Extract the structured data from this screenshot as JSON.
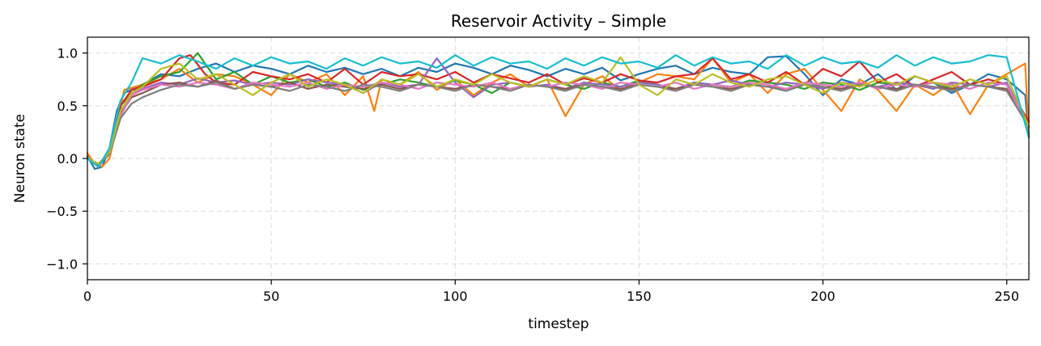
{
  "chart_data": {
    "type": "line",
    "title": "Reservoir Activity – Simple",
    "xlabel": "timestep",
    "ylabel": "Neuron state",
    "xlim": [
      0,
      256
    ],
    "ylim": [
      -1.15,
      1.15
    ],
    "xticks": [
      0,
      50,
      100,
      150,
      200,
      250
    ],
    "xtick_labels": [
      "0",
      "50",
      "100",
      "150",
      "200",
      "250"
    ],
    "yticks": [
      -1.0,
      -0.5,
      0.0,
      0.5,
      1.0
    ],
    "ytick_labels": [
      "−1.0",
      "−0.5",
      "0.0",
      "0.5",
      "1.0"
    ],
    "grid": true,
    "legend": false,
    "series": [
      {
        "color": "#1f77b4",
        "x": [
          0,
          2,
          4,
          6,
          8,
          10,
          15,
          20,
          25,
          30,
          35,
          40,
          45,
          50,
          55,
          60,
          65,
          70,
          75,
          80,
          85,
          90,
          95,
          100,
          105,
          110,
          115,
          120,
          125,
          130,
          135,
          140,
          145,
          150,
          155,
          160,
          165,
          170,
          175,
          180,
          185,
          190,
          195,
          200,
          205,
          210,
          215,
          220,
          225,
          230,
          235,
          240,
          245,
          250,
          255,
          256
        ],
        "y": [
          0.02,
          -0.1,
          -0.08,
          0.1,
          0.45,
          0.62,
          0.7,
          0.8,
          0.78,
          0.85,
          0.9,
          0.82,
          0.88,
          0.85,
          0.8,
          0.88,
          0.82,
          0.86,
          0.8,
          0.85,
          0.78,
          0.86,
          0.82,
          0.9,
          0.86,
          0.8,
          0.88,
          0.84,
          0.78,
          0.85,
          0.8,
          0.86,
          0.74,
          0.8,
          0.85,
          0.88,
          0.8,
          0.86,
          0.82,
          0.8,
          0.96,
          0.97,
          0.8,
          0.6,
          0.75,
          0.7,
          0.8,
          0.65,
          0.78,
          0.72,
          0.62,
          0.7,
          0.8,
          0.75,
          0.6,
          0.2
        ]
      },
      {
        "color": "#ff7f0e",
        "x": [
          0,
          2,
          4,
          6,
          8,
          10,
          15,
          20,
          25,
          30,
          35,
          40,
          45,
          50,
          55,
          60,
          65,
          70,
          75,
          78,
          80,
          85,
          90,
          95,
          100,
          105,
          110,
          115,
          120,
          125,
          130,
          135,
          140,
          145,
          150,
          155,
          160,
          165,
          170,
          175,
          180,
          185,
          190,
          195,
          200,
          205,
          210,
          215,
          220,
          225,
          230,
          235,
          240,
          245,
          250,
          255,
          256
        ],
        "y": [
          0.05,
          -0.05,
          -0.08,
          0.0,
          0.3,
          0.65,
          0.7,
          0.75,
          0.85,
          0.72,
          0.8,
          0.78,
          0.7,
          0.6,
          0.8,
          0.72,
          0.8,
          0.6,
          0.78,
          0.45,
          0.75,
          0.7,
          0.82,
          0.65,
          0.75,
          0.6,
          0.72,
          0.8,
          0.68,
          0.75,
          0.4,
          0.7,
          0.78,
          0.65,
          0.72,
          0.8,
          0.78,
          0.75,
          0.95,
          0.72,
          0.8,
          0.62,
          0.8,
          0.85,
          0.65,
          0.45,
          0.75,
          0.65,
          0.45,
          0.7,
          0.6,
          0.72,
          0.42,
          0.7,
          0.8,
          0.9,
          0.2
        ]
      },
      {
        "color": "#2ca02c",
        "x": [
          0,
          3,
          6,
          9,
          12,
          15,
          20,
          25,
          30,
          35,
          40,
          45,
          50,
          55,
          60,
          65,
          70,
          75,
          80,
          85,
          90,
          95,
          100,
          105,
          110,
          115,
          120,
          125,
          130,
          135,
          140,
          145,
          150,
          155,
          160,
          165,
          170,
          175,
          180,
          185,
          190,
          195,
          200,
          205,
          210,
          215,
          220,
          225,
          230,
          235,
          240,
          245,
          250,
          256
        ],
        "y": [
          0.0,
          -0.07,
          0.05,
          0.5,
          0.62,
          0.7,
          0.78,
          0.82,
          1.0,
          0.75,
          0.82,
          0.7,
          0.78,
          0.72,
          0.75,
          0.68,
          0.72,
          0.65,
          0.7,
          0.75,
          0.72,
          0.68,
          0.74,
          0.7,
          0.62,
          0.72,
          0.68,
          0.75,
          0.7,
          0.66,
          0.72,
          0.68,
          0.74,
          0.7,
          0.66,
          0.72,
          0.7,
          0.68,
          0.74,
          0.72,
          0.7,
          0.66,
          0.72,
          0.7,
          0.65,
          0.72,
          0.7,
          0.68,
          0.72,
          0.66,
          0.7,
          0.68,
          0.72,
          0.3
        ]
      },
      {
        "color": "#d62728",
        "x": [
          0,
          3,
          6,
          9,
          12,
          15,
          20,
          25,
          28,
          32,
          35,
          40,
          45,
          50,
          55,
          60,
          65,
          70,
          75,
          80,
          85,
          90,
          95,
          100,
          105,
          110,
          115,
          120,
          125,
          130,
          135,
          140,
          145,
          150,
          155,
          160,
          165,
          170,
          175,
          180,
          185,
          190,
          195,
          200,
          205,
          210,
          215,
          220,
          225,
          230,
          235,
          240,
          245,
          250,
          256
        ],
        "y": [
          0.0,
          -0.08,
          0.08,
          0.5,
          0.65,
          0.68,
          0.75,
          0.95,
          0.98,
          0.8,
          0.72,
          0.7,
          0.82,
          0.78,
          0.75,
          0.8,
          0.72,
          0.85,
          0.7,
          0.82,
          0.78,
          0.8,
          0.75,
          0.82,
          0.72,
          0.8,
          0.76,
          0.72,
          0.8,
          0.7,
          0.76,
          0.72,
          0.8,
          0.74,
          0.72,
          0.78,
          0.8,
          0.95,
          0.75,
          0.8,
          0.72,
          0.82,
          0.7,
          0.85,
          0.78,
          0.92,
          0.72,
          0.8,
          0.68,
          0.75,
          0.82,
          0.7,
          0.75,
          0.7,
          0.35
        ]
      },
      {
        "color": "#9467bd",
        "x": [
          0,
          3,
          6,
          9,
          12,
          15,
          20,
          25,
          30,
          35,
          40,
          45,
          50,
          55,
          60,
          65,
          70,
          75,
          80,
          85,
          90,
          95,
          100,
          105,
          110,
          115,
          120,
          125,
          130,
          135,
          140,
          145,
          150,
          155,
          160,
          165,
          170,
          175,
          180,
          185,
          190,
          195,
          200,
          205,
          210,
          215,
          220,
          225,
          230,
          235,
          240,
          245,
          250,
          256
        ],
        "y": [
          0.0,
          -0.06,
          0.05,
          0.45,
          0.6,
          0.66,
          0.72,
          0.7,
          0.76,
          0.72,
          0.74,
          0.7,
          0.72,
          0.7,
          0.75,
          0.72,
          0.7,
          0.62,
          0.72,
          0.68,
          0.7,
          0.95,
          0.72,
          0.58,
          0.7,
          0.72,
          0.68,
          0.7,
          0.66,
          0.72,
          0.7,
          0.68,
          0.72,
          0.7,
          0.66,
          0.72,
          0.7,
          0.74,
          0.7,
          0.68,
          0.72,
          0.7,
          0.66,
          0.72,
          0.7,
          0.68,
          0.72,
          0.7,
          0.66,
          0.72,
          0.7,
          0.68,
          0.72,
          0.3
        ]
      },
      {
        "color": "#8c564b",
        "x": [
          0,
          3,
          6,
          9,
          12,
          15,
          20,
          25,
          30,
          35,
          40,
          45,
          50,
          55,
          60,
          65,
          70,
          75,
          80,
          85,
          90,
          95,
          100,
          105,
          110,
          115,
          120,
          125,
          130,
          135,
          140,
          145,
          150,
          155,
          160,
          165,
          170,
          175,
          180,
          185,
          190,
          195,
          200,
          205,
          210,
          215,
          220,
          225,
          230,
          235,
          240,
          245,
          250,
          256
        ],
        "y": [
          0.0,
          -0.06,
          0.05,
          0.42,
          0.58,
          0.62,
          0.7,
          0.72,
          0.68,
          0.74,
          0.66,
          0.7,
          0.68,
          0.72,
          0.66,
          0.7,
          0.68,
          0.66,
          0.7,
          0.66,
          0.7,
          0.68,
          0.66,
          0.7,
          0.68,
          0.66,
          0.7,
          0.68,
          0.66,
          0.7,
          0.68,
          0.66,
          0.7,
          0.68,
          0.66,
          0.7,
          0.68,
          0.66,
          0.7,
          0.68,
          0.66,
          0.7,
          0.68,
          0.66,
          0.7,
          0.68,
          0.66,
          0.7,
          0.68,
          0.66,
          0.7,
          0.68,
          0.66,
          0.3
        ]
      },
      {
        "color": "#e377c2",
        "x": [
          0,
          3,
          6,
          9,
          12,
          15,
          20,
          25,
          30,
          35,
          40,
          45,
          50,
          55,
          60,
          65,
          70,
          75,
          80,
          85,
          90,
          95,
          100,
          105,
          110,
          115,
          120,
          125,
          130,
          135,
          140,
          145,
          150,
          155,
          160,
          165,
          170,
          175,
          180,
          185,
          190,
          195,
          200,
          205,
          210,
          215,
          220,
          225,
          230,
          235,
          240,
          245,
          250,
          256
        ],
        "y": [
          0.0,
          -0.05,
          0.05,
          0.4,
          0.6,
          0.65,
          0.7,
          0.68,
          0.72,
          0.7,
          0.66,
          0.72,
          0.7,
          0.68,
          0.72,
          0.66,
          0.7,
          0.68,
          0.72,
          0.7,
          0.66,
          0.72,
          0.7,
          0.68,
          0.72,
          0.66,
          0.7,
          0.68,
          0.72,
          0.7,
          0.66,
          0.72,
          0.7,
          0.68,
          0.72,
          0.66,
          0.7,
          0.68,
          0.72,
          0.7,
          0.66,
          0.72,
          0.7,
          0.68,
          0.72,
          0.66,
          0.7,
          0.68,
          0.72,
          0.7,
          0.66,
          0.72,
          0.7,
          0.3
        ]
      },
      {
        "color": "#7f7f7f",
        "x": [
          0,
          3,
          6,
          9,
          12,
          15,
          20,
          25,
          30,
          35,
          40,
          45,
          50,
          55,
          60,
          65,
          70,
          75,
          80,
          85,
          90,
          95,
          100,
          105,
          110,
          115,
          120,
          125,
          130,
          135,
          140,
          145,
          150,
          155,
          160,
          165,
          170,
          175,
          180,
          185,
          190,
          195,
          200,
          205,
          210,
          215,
          220,
          225,
          230,
          235,
          240,
          245,
          250,
          256
        ],
        "y": [
          0.0,
          -0.06,
          0.04,
          0.38,
          0.52,
          0.58,
          0.65,
          0.7,
          0.68,
          0.72,
          0.66,
          0.7,
          0.68,
          0.64,
          0.7,
          0.68,
          0.64,
          0.7,
          0.68,
          0.64,
          0.7,
          0.68,
          0.64,
          0.7,
          0.68,
          0.64,
          0.7,
          0.68,
          0.64,
          0.7,
          0.68,
          0.64,
          0.7,
          0.68,
          0.64,
          0.7,
          0.68,
          0.64,
          0.7,
          0.68,
          0.64,
          0.7,
          0.68,
          0.64,
          0.7,
          0.68,
          0.64,
          0.7,
          0.68,
          0.64,
          0.7,
          0.68,
          0.64,
          0.3
        ]
      },
      {
        "color": "#bcbd22",
        "x": [
          0,
          3,
          6,
          9,
          12,
          15,
          20,
          25,
          30,
          35,
          40,
          45,
          50,
          55,
          60,
          65,
          70,
          75,
          80,
          85,
          90,
          95,
          100,
          105,
          110,
          115,
          120,
          125,
          130,
          135,
          140,
          145,
          150,
          155,
          160,
          165,
          170,
          175,
          180,
          185,
          190,
          195,
          200,
          205,
          210,
          215,
          220,
          225,
          230,
          235,
          240,
          245,
          250,
          256
        ],
        "y": [
          0.0,
          -0.05,
          0.06,
          0.45,
          0.62,
          0.68,
          0.85,
          0.9,
          0.75,
          0.8,
          0.7,
          0.6,
          0.72,
          0.8,
          0.68,
          0.75,
          0.7,
          0.62,
          0.75,
          0.7,
          0.8,
          0.68,
          0.75,
          0.7,
          0.8,
          0.72,
          0.68,
          0.75,
          0.7,
          0.78,
          0.72,
          0.96,
          0.7,
          0.6,
          0.75,
          0.7,
          0.8,
          0.72,
          0.68,
          0.75,
          0.78,
          0.7,
          0.62,
          0.72,
          0.68,
          0.75,
          0.7,
          0.78,
          0.72,
          0.68,
          0.75,
          0.7,
          0.78,
          0.3
        ]
      },
      {
        "color": "#17becf",
        "x": [
          0,
          3,
          6,
          9,
          12,
          15,
          20,
          25,
          30,
          35,
          40,
          45,
          50,
          55,
          60,
          65,
          70,
          75,
          80,
          85,
          90,
          95,
          100,
          105,
          110,
          115,
          120,
          125,
          130,
          135,
          140,
          145,
          150,
          155,
          160,
          165,
          170,
          175,
          180,
          185,
          190,
          195,
          200,
          205,
          210,
          215,
          220,
          225,
          230,
          235,
          240,
          245,
          250,
          256
        ],
        "y": [
          0.0,
          -0.08,
          0.1,
          0.55,
          0.72,
          0.95,
          0.9,
          0.98,
          0.92,
          0.85,
          0.95,
          0.88,
          0.96,
          0.9,
          0.92,
          0.85,
          0.95,
          0.88,
          0.96,
          0.9,
          0.92,
          0.86,
          0.98,
          0.88,
          0.96,
          0.9,
          0.92,
          0.85,
          0.95,
          0.88,
          0.96,
          0.9,
          0.92,
          0.86,
          0.98,
          0.88,
          0.96,
          0.9,
          0.92,
          0.85,
          0.98,
          0.88,
          0.96,
          0.9,
          0.92,
          0.86,
          0.98,
          0.88,
          0.96,
          0.9,
          0.92,
          0.98,
          0.96,
          0.2
        ]
      }
    ]
  }
}
